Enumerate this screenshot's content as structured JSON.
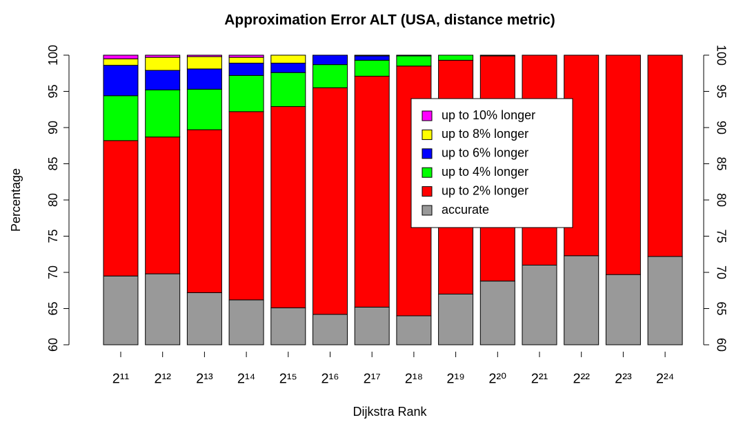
{
  "chart_data": {
    "type": "stacked_bar",
    "title": "Approximation Error ALT (USA, distance metric)",
    "xlabel": "Dijkstra Rank",
    "ylabel": "Percentage",
    "categories": [
      "2¹¹",
      "2¹²",
      "2¹³",
      "2¹⁴",
      "2¹⁵",
      "2¹⁶",
      "2¹⁷",
      "2¹⁸",
      "2¹⁹",
      "2²⁰",
      "2²¹",
      "2²²",
      "2²³",
      "2²⁴"
    ],
    "series": [
      {
        "name": "accurate",
        "color": "#999999",
        "values": [
          69.5,
          69.8,
          67.2,
          66.2,
          65.1,
          64.2,
          65.2,
          64.0,
          67.0,
          68.8,
          71.0,
          72.3,
          69.7,
          72.2
        ]
      },
      {
        "name": "up to 2% longer",
        "color": "#ff0000",
        "values": [
          18.7,
          18.9,
          22.5,
          26.0,
          27.8,
          31.3,
          31.9,
          34.5,
          32.3,
          31.1,
          29.0,
          27.7,
          30.3,
          27.8
        ]
      },
      {
        "name": "up to 4% longer",
        "color": "#00ff00",
        "values": [
          6.2,
          6.5,
          5.6,
          5.0,
          4.7,
          3.2,
          2.2,
          1.4,
          0.7,
          0.1,
          0,
          0,
          0,
          0
        ]
      },
      {
        "name": "up to 6% longer",
        "color": "#0000ff",
        "values": [
          4.2,
          2.7,
          2.8,
          1.7,
          1.3,
          1.3,
          0.6,
          0.1,
          0,
          0,
          0,
          0,
          0,
          0
        ]
      },
      {
        "name": "up to 8% longer",
        "color": "#ffff00",
        "values": [
          0.9,
          1.8,
          1.7,
          0.8,
          1.1,
          0,
          0.1,
          0,
          0,
          0,
          0,
          0,
          0,
          0
        ]
      },
      {
        "name": "up to 10% longer",
        "color": "#ff00ff",
        "values": [
          0.5,
          0.3,
          0.2,
          0.3,
          0,
          0,
          0,
          0,
          0,
          0,
          0,
          0,
          0,
          0
        ]
      }
    ],
    "ylim": [
      60,
      100
    ],
    "yticks": [
      60,
      65,
      70,
      75,
      80,
      85,
      90,
      95,
      100
    ],
    "right_axis": true
  }
}
